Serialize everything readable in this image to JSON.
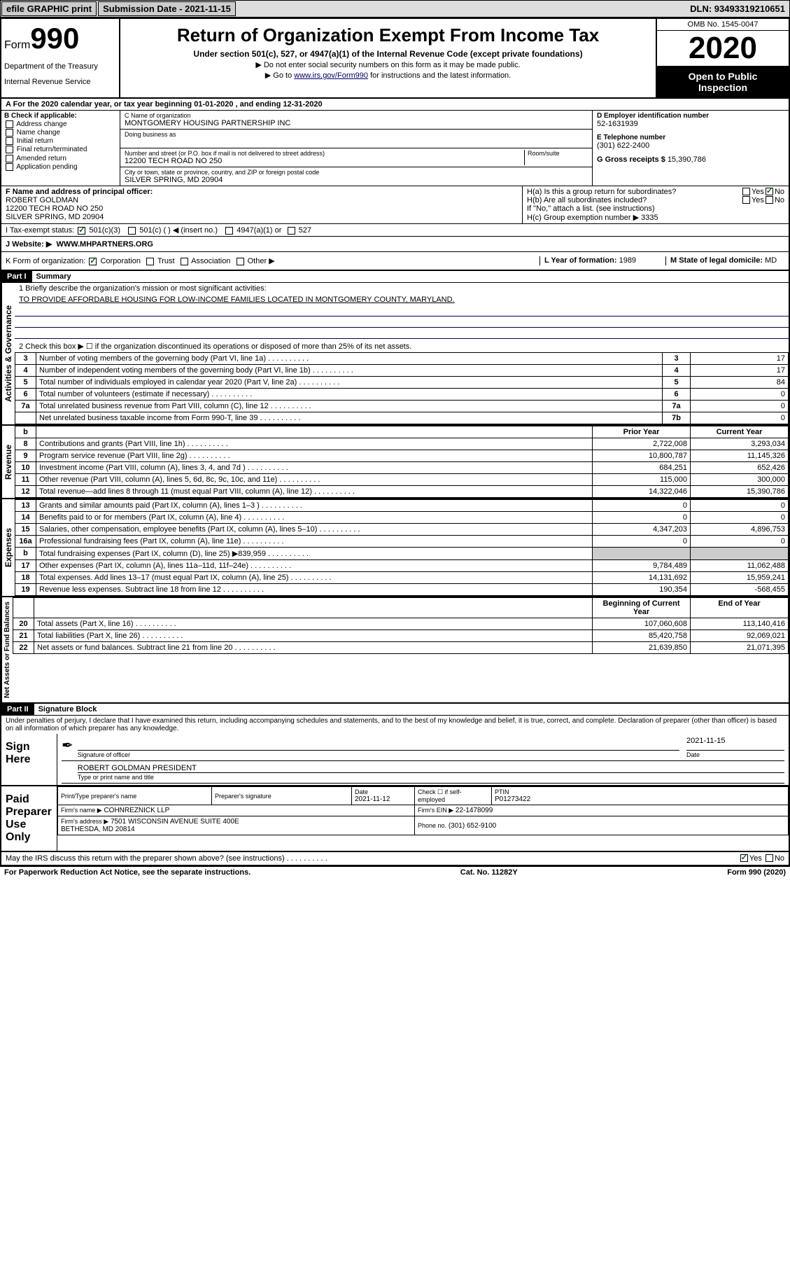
{
  "topbar": {
    "efile": "efile GRAPHIC print",
    "submission_label": "Submission Date - 2021-11-15",
    "dln": "DLN: 93493319210651"
  },
  "header": {
    "form_word": "Form",
    "form_number": "990",
    "dept1": "Department of the Treasury",
    "dept2": "Internal Revenue Service",
    "title": "Return of Organization Exempt From Income Tax",
    "subtitle": "Under section 501(c), 527, or 4947(a)(1) of the Internal Revenue Code (except private foundations)",
    "instr1": "▶ Do not enter social security numbers on this form as it may be made public.",
    "instr2_pre": "▶ Go to ",
    "instr2_link": "www.irs.gov/Form990",
    "instr2_post": " for instructions and the latest information.",
    "omb": "OMB No. 1545-0047",
    "year": "2020",
    "inspection1": "Open to Public",
    "inspection2": "Inspection"
  },
  "row_a": "A For the 2020 calendar year, or tax year beginning 01-01-2020   , and ending 12-31-2020",
  "box_b": {
    "title": "B Check if applicable:",
    "items": [
      "Address change",
      "Name change",
      "Initial return",
      "Final return/terminated",
      "Amended return",
      "Application pending"
    ]
  },
  "box_c": {
    "label_name": "C Name of organization",
    "org_name": "MONTGOMERY HOUSING PARTNERSHIP INC",
    "dba_label": "Doing business as",
    "addr_label": "Number and street (or P.O. box if mail is not delivered to street address)",
    "room_label": "Room/suite",
    "addr": "12200 TECH ROAD NO 250",
    "city_label": "City or town, state or province, country, and ZIP or foreign postal code",
    "city": "SILVER SPRING, MD  20904"
  },
  "box_d": {
    "label": "D Employer identification number",
    "val": "52-1631939"
  },
  "box_e": {
    "label": "E Telephone number",
    "val": "(301) 622-2400"
  },
  "box_g": {
    "label": "G Gross receipts $",
    "val": "15,390,786"
  },
  "box_f": {
    "label": "F Name and address of principal officer:",
    "name": "ROBERT GOLDMAN",
    "addr1": "12200 TECH ROAD NO 250",
    "addr2": "SILVER SPRING, MD  20904"
  },
  "box_h": {
    "ha": "H(a)  Is this a group return for subordinates?",
    "hb": "H(b)  Are all subordinates included?",
    "hb_note": "If \"No,\" attach a list. (see instructions)",
    "hc": "H(c)  Group exemption number ▶   3335",
    "yes": "Yes",
    "no": "No"
  },
  "tax_status": {
    "label": "I   Tax-exempt status:",
    "opt1": "501(c)(3)",
    "opt2": "501(c) (  ) ◀ (insert no.)",
    "opt3": "4947(a)(1) or",
    "opt4": "527"
  },
  "website": {
    "label": "J   Website: ▶",
    "val": "WWW.MHPARTNERS.ORG"
  },
  "row_k": {
    "label": "K Form of organization:",
    "opts": [
      "Corporation",
      "Trust",
      "Association",
      "Other ▶"
    ],
    "l_label": "L Year of formation:",
    "l_val": "1989",
    "m_label": "M State of legal domicile:",
    "m_val": "MD"
  },
  "part1": {
    "title": "Part I",
    "subtitle": "Summary",
    "q1": "1   Briefly describe the organization's mission or most significant activities:",
    "q1_val": "TO PROVIDE AFFORDABLE HOUSING FOR LOW-INCOME FAMILIES LOCATED IN MONTGOMERY COUNTY, MARYLAND.",
    "q2": "2   Check this box ▶ ☐  if the organization discontinued its operations or disposed of more than 25% of its net assets.",
    "side_labels": {
      "gov": "Activities & Governance",
      "rev": "Revenue",
      "exp": "Expenses",
      "net": "Net Assets or Fund Balances"
    },
    "gov_rows": [
      {
        "n": "3",
        "d": "Number of voting members of the governing body (Part VI, line 1a)",
        "c": "3",
        "v": "17"
      },
      {
        "n": "4",
        "d": "Number of independent voting members of the governing body (Part VI, line 1b)",
        "c": "4",
        "v": "17"
      },
      {
        "n": "5",
        "d": "Total number of individuals employed in calendar year 2020 (Part V, line 2a)",
        "c": "5",
        "v": "84"
      },
      {
        "n": "6",
        "d": "Total number of volunteers (estimate if necessary)",
        "c": "6",
        "v": "0"
      },
      {
        "n": "7a",
        "d": "Total unrelated business revenue from Part VIII, column (C), line 12",
        "c": "7a",
        "v": "0"
      },
      {
        "n": "",
        "d": "Net unrelated business taxable income from Form 990-T, line 39",
        "c": "7b",
        "v": "0"
      }
    ],
    "col_hdr": {
      "b": "b",
      "prior": "Prior Year",
      "current": "Current Year"
    },
    "rev_rows": [
      {
        "n": "8",
        "d": "Contributions and grants (Part VIII, line 1h)",
        "p": "2,722,008",
        "c": "3,293,034"
      },
      {
        "n": "9",
        "d": "Program service revenue (Part VIII, line 2g)",
        "p": "10,800,787",
        "c": "11,145,326"
      },
      {
        "n": "10",
        "d": "Investment income (Part VIII, column (A), lines 3, 4, and 7d )",
        "p": "684,251",
        "c": "652,426"
      },
      {
        "n": "11",
        "d": "Other revenue (Part VIII, column (A), lines 5, 6d, 8c, 9c, 10c, and 11e)",
        "p": "115,000",
        "c": "300,000"
      },
      {
        "n": "12",
        "d": "Total revenue—add lines 8 through 11 (must equal Part VIII, column (A), line 12)",
        "p": "14,322,046",
        "c": "15,390,786"
      }
    ],
    "exp_rows": [
      {
        "n": "13",
        "d": "Grants and similar amounts paid (Part IX, column (A), lines 1–3 )",
        "p": "0",
        "c": "0"
      },
      {
        "n": "14",
        "d": "Benefits paid to or for members (Part IX, column (A), line 4)",
        "p": "0",
        "c": "0"
      },
      {
        "n": "15",
        "d": "Salaries, other compensation, employee benefits (Part IX, column (A), lines 5–10)",
        "p": "4,347,203",
        "c": "4,896,753"
      },
      {
        "n": "16a",
        "d": "Professional fundraising fees (Part IX, column (A), line 11e)",
        "p": "0",
        "c": "0"
      },
      {
        "n": "b",
        "d": "Total fundraising expenses (Part IX, column (D), line 25) ▶839,959",
        "p": "",
        "c": "",
        "shade": true
      },
      {
        "n": "17",
        "d": "Other expenses (Part IX, column (A), lines 11a–11d, 11f–24e)",
        "p": "9,784,489",
        "c": "11,062,488"
      },
      {
        "n": "18",
        "d": "Total expenses. Add lines 13–17 (must equal Part IX, column (A), line 25)",
        "p": "14,131,692",
        "c": "15,959,241"
      },
      {
        "n": "19",
        "d": "Revenue less expenses. Subtract line 18 from line 12",
        "p": "190,354",
        "c": "-568,455"
      }
    ],
    "net_hdr": {
      "begin": "Beginning of Current Year",
      "end": "End of Year"
    },
    "net_rows": [
      {
        "n": "20",
        "d": "Total assets (Part X, line 16)",
        "p": "107,060,608",
        "c": "113,140,416"
      },
      {
        "n": "21",
        "d": "Total liabilities (Part X, line 26)",
        "p": "85,420,758",
        "c": "92,069,021"
      },
      {
        "n": "22",
        "d": "Net assets or fund balances. Subtract line 21 from line 20",
        "p": "21,639,850",
        "c": "21,071,395"
      }
    ]
  },
  "part2": {
    "title": "Part II",
    "subtitle": "Signature Block",
    "disclaimer": "Under penalties of perjury, I declare that I have examined this return, including accompanying schedules and statements, and to the best of my knowledge and belief, it is true, correct, and complete. Declaration of preparer (other than officer) is based on all information of which preparer has any knowledge.",
    "sign_here": "Sign Here",
    "sig_officer": "Signature of officer",
    "sig_date_label": "Date",
    "sig_date": "2021-11-15",
    "sig_name": "ROBERT GOLDMAN  PRESIDENT",
    "sig_name_label": "Type or print name and title",
    "paid": "Paid Preparer Use Only",
    "prep_name_label": "Print/Type preparer's name",
    "prep_sig_label": "Preparer's signature",
    "prep_date_label": "Date",
    "prep_date": "2021-11-12",
    "check_self": "Check ☐ if self-employed",
    "ptin_label": "PTIN",
    "ptin": "P01273422",
    "firm_name_label": "Firm's name   ▶",
    "firm_name": "COHNREZNICK LLP",
    "firm_ein_label": "Firm's EIN ▶",
    "firm_ein": "22-1478099",
    "firm_addr_label": "Firm's address ▶",
    "firm_addr1": "7501 WISCONSIN AVENUE SUITE 400E",
    "firm_addr2": "BETHESDA, MD  20814",
    "phone_label": "Phone no.",
    "phone": "(301) 652-9100",
    "discuss": "May the IRS discuss this return with the preparer shown above? (see instructions)",
    "yes": "Yes",
    "no": "No"
  },
  "footer": {
    "left": "For Paperwork Reduction Act Notice, see the separate instructions.",
    "mid": "Cat. No. 11282Y",
    "right": "Form 990 (2020)"
  }
}
